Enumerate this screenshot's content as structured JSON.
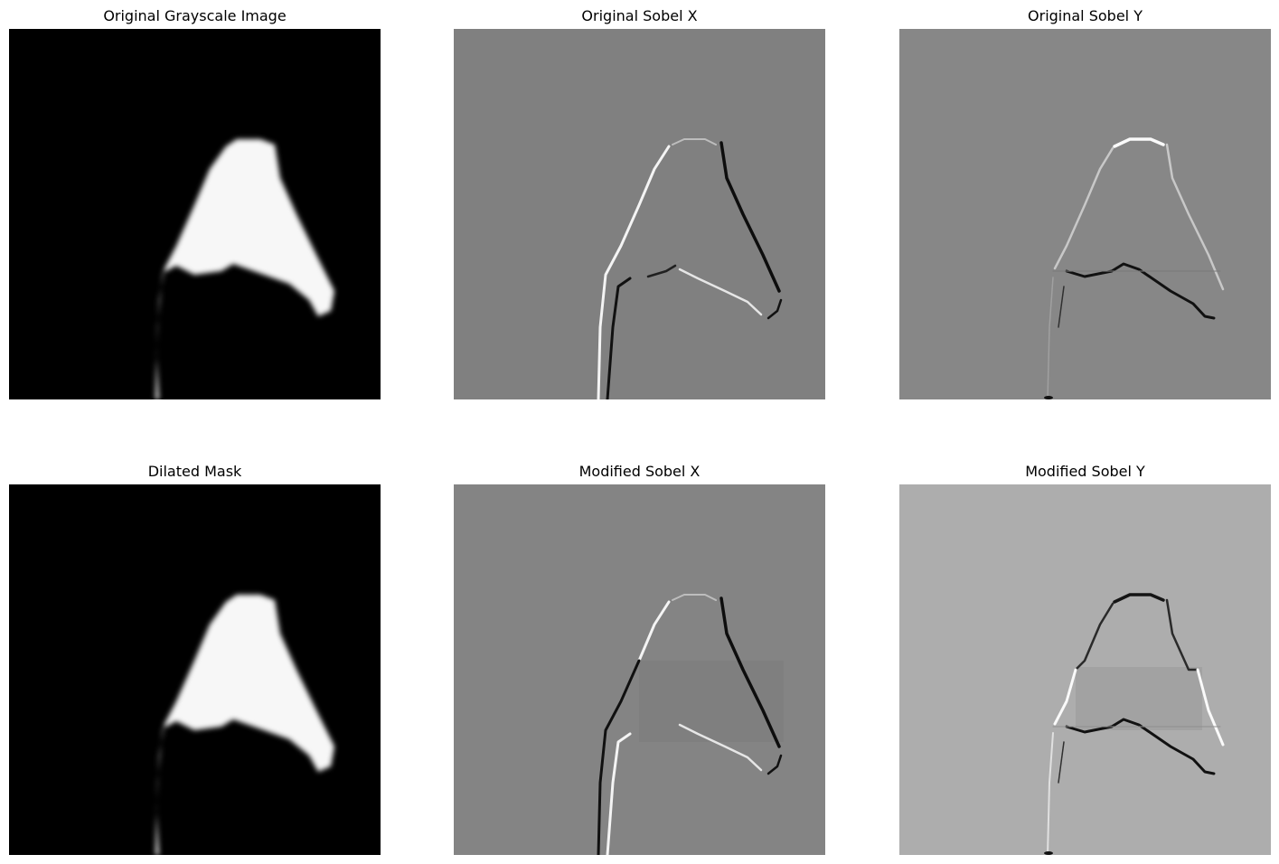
{
  "panels": [
    {
      "id": "original-grayscale",
      "title": "Original Grayscale Image",
      "kind": "mask",
      "background": "#000000"
    },
    {
      "id": "original-sobel-x",
      "title": "Original Sobel X",
      "kind": "sobel-x",
      "background": "#808080"
    },
    {
      "id": "original-sobel-y",
      "title": "Original Sobel Y",
      "kind": "sobel-y",
      "background": "#878787"
    },
    {
      "id": "dilated-mask",
      "title": "Dilated Mask",
      "kind": "mask",
      "background": "#000000"
    },
    {
      "id": "modified-sobel-x",
      "title": "Modified Sobel X",
      "kind": "sobel-x-mod",
      "background": "#848484"
    },
    {
      "id": "modified-sobel-y",
      "title": "Modified Sobel Y",
      "kind": "sobel-y-mod",
      "background": "#adadad"
    }
  ]
}
